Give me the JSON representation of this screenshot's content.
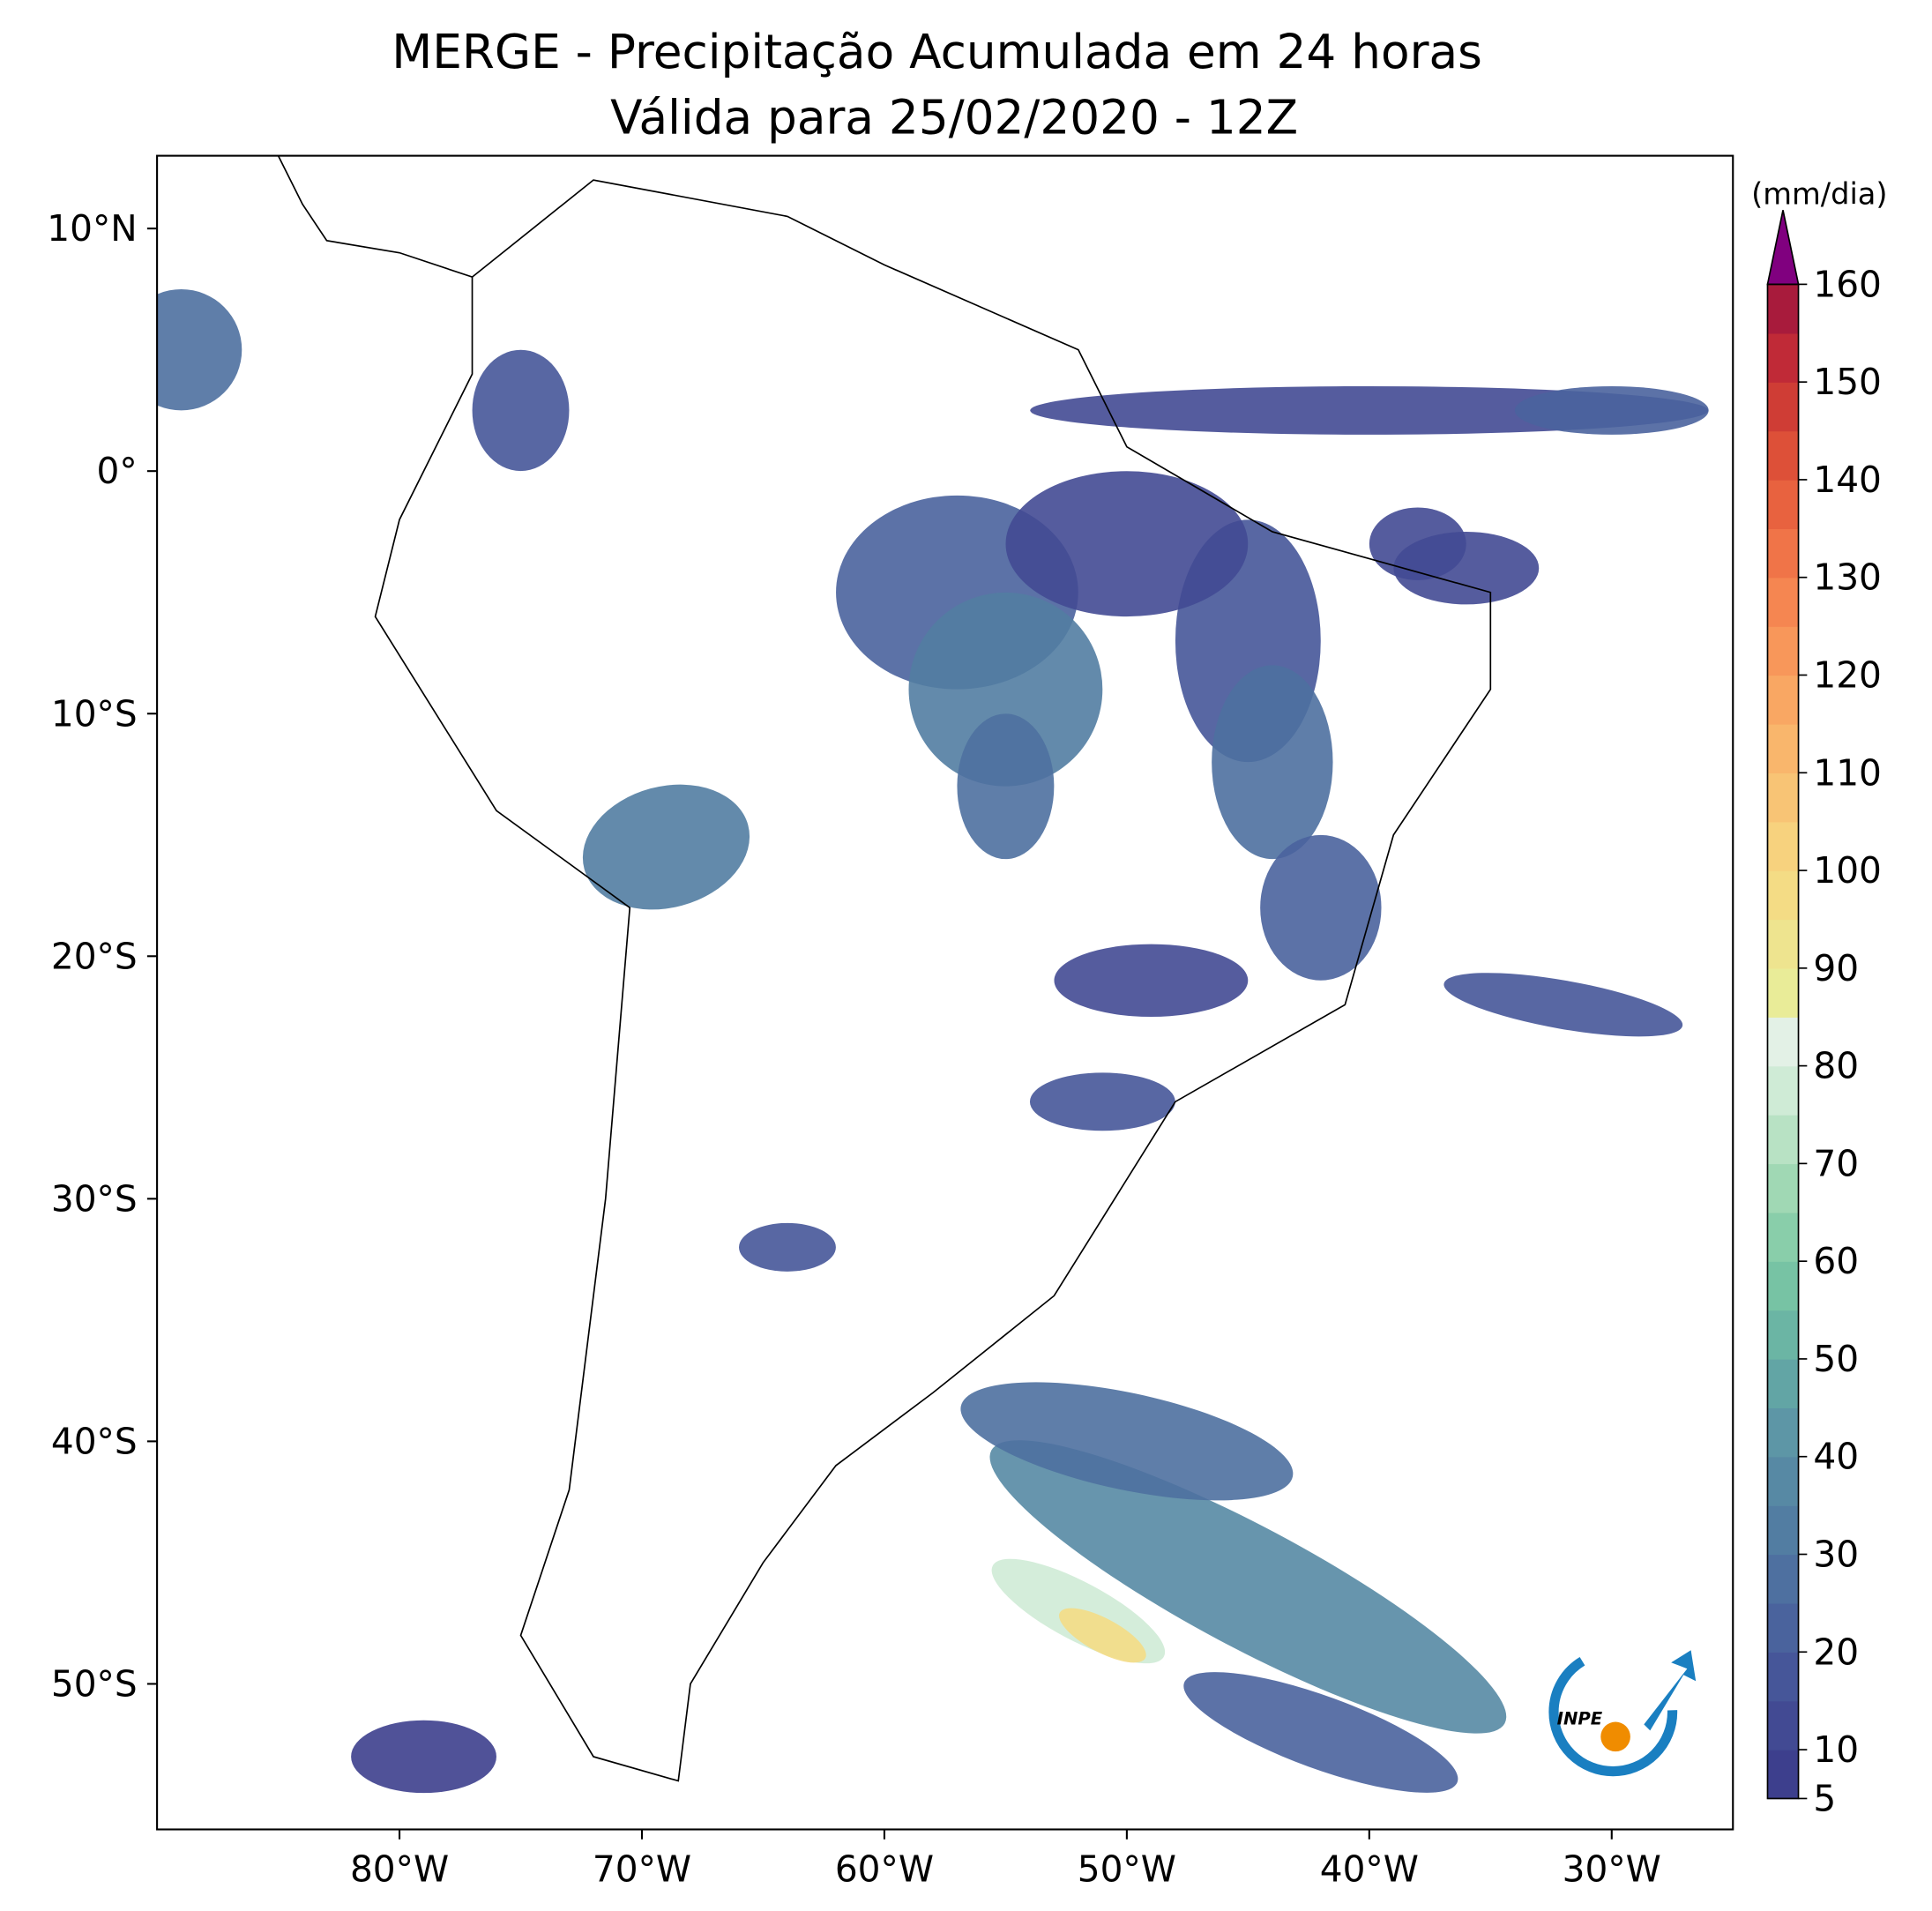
{
  "chart_data": {
    "type": "map",
    "title": "MERGE - Precipitação Acumulada em 24 horas",
    "subtitle": "Válida para 25/02/2020 - 12Z",
    "xlim": [
      -90,
      -25
    ],
    "ylim": [
      -56,
      13
    ],
    "xticks": [
      {
        "value": -80,
        "label": "80°W"
      },
      {
        "value": -70,
        "label": "70°W"
      },
      {
        "value": -60,
        "label": "60°W"
      },
      {
        "value": -50,
        "label": "50°W"
      },
      {
        "value": -40,
        "label": "40°W"
      },
      {
        "value": -30,
        "label": "30°W"
      }
    ],
    "yticks": [
      {
        "value": 10,
        "label": "10°N"
      },
      {
        "value": 0,
        "label": "0°"
      },
      {
        "value": -10,
        "label": "10°S"
      },
      {
        "value": -20,
        "label": "20°S"
      },
      {
        "value": -30,
        "label": "30°S"
      },
      {
        "value": -40,
        "label": "40°S"
      },
      {
        "value": -50,
        "label": "50°S"
      }
    ],
    "colorbar": {
      "label": "(mm/dia)",
      "lim": [
        5,
        160
      ],
      "ticks": [
        5,
        10,
        20,
        30,
        40,
        50,
        60,
        70,
        80,
        90,
        100,
        110,
        120,
        130,
        140,
        150,
        160
      ],
      "colors": [
        "#3d3f8d",
        "#424a93",
        "#465699",
        "#4a639d",
        "#4e70a0",
        "#527da2",
        "#5789a4",
        "#5d96a6",
        "#62a5a5",
        "#6bb5a4",
        "#77c3a4",
        "#89ceaa",
        "#a0d8b4",
        "#b8e2c4",
        "#cfebd6",
        "#e3f1e6",
        "#e9ec98",
        "#eee48f",
        "#f4dc85",
        "#f7d27e",
        "#f8c475",
        "#f9b66c",
        "#f9a763",
        "#f8975a",
        "#f58651",
        "#f07448",
        "#e8623f",
        "#dd5038",
        "#cf3d35",
        "#c02a37",
        "#a81b3c"
      ],
      "extend_color": "#80007f"
    },
    "logo": {
      "text": "INPE"
    }
  }
}
